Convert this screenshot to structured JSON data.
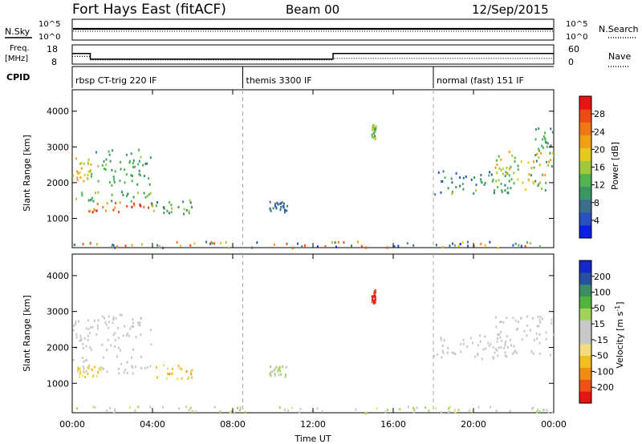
{
  "header": {
    "station": "Fort Hays East (fitACF)",
    "beam": "Beam 00",
    "date": "12/Sep/2015"
  },
  "summary_panels": {
    "sky_label": "N.Sky",
    "search_label": "N.Search",
    "nsky_ticks": [
      "10^5",
      "10^0"
    ],
    "nsearch_ticks": [
      "10^5",
      "10^0"
    ],
    "freq_label_1": "Freq.",
    "freq_label_2": "[MHz]",
    "freq_ticks": [
      "18",
      "8"
    ],
    "nave_label": "Nave",
    "nave_ticks": [
      "60",
      "0"
    ],
    "cpid_label": "CPID",
    "freq_segments": [
      {
        "start": 0.0,
        "end": 0.9,
        "value": 13.5
      },
      {
        "start": 0.9,
        "end": 13.0,
        "value": 10.6
      },
      {
        "start": 13.0,
        "end": 24.0,
        "value": 13.5
      }
    ],
    "nave_segments": [
      {
        "start": 0.0,
        "end": 0.9,
        "value": 24
      },
      {
        "start": 0.9,
        "end": 13.0,
        "value": 13
      },
      {
        "start": 13.0,
        "end": 24.0,
        "value": 18
      }
    ],
    "cpid_segments": [
      {
        "label": "rbsp CT-trig 220 IF",
        "start": 0.0
      },
      {
        "label": "themis 3300 IF",
        "start": 8.5
      },
      {
        "label": "normal (fast) 151 IF",
        "start": 18.0
      }
    ]
  },
  "chart_data": [
    {
      "type": "heatmap",
      "title": "",
      "xlabel": "Time UT",
      "ylabel": "Slant Range [km]",
      "xlim": [
        0,
        24
      ],
      "ylim": [
        180,
        4600
      ],
      "x_ticks": [
        "00:00",
        "04:00",
        "08:00",
        "12:00",
        "16:00",
        "20:00",
        "00:00"
      ],
      "y_ticks": [
        1000,
        2000,
        3000,
        4000
      ],
      "colorbar_label": "Power [dB]",
      "colorbar_ticks": [
        4,
        8,
        12,
        16,
        20,
        24,
        28
      ],
      "colorbar_range": [
        0,
        30
      ],
      "colorbar_colors": [
        "#0a1ee6",
        "#2850c0",
        "#3c6e8c",
        "#3c9664",
        "#50b450",
        "#a0c83c",
        "#e6c81e",
        "#f0a014",
        "#f07814",
        "#ee4a14",
        "#e61414"
      ],
      "mode_boundaries_hours": [
        8.5,
        18.0
      ],
      "scatter_regions": [
        {
          "t": [
            0.0,
            0.9
          ],
          "r": [
            2000,
            2800
          ],
          "v": [
            14,
            22
          ]
        },
        {
          "t": [
            0.9,
            3.9
          ],
          "r": [
            1950,
            2950
          ],
          "v": [
            8,
            14
          ]
        },
        {
          "t": [
            0.0,
            3.9
          ],
          "r": [
            1500,
            1800
          ],
          "v": [
            8,
            16
          ]
        },
        {
          "t": [
            0.8,
            4.0
          ],
          "r": [
            1200,
            1500
          ],
          "v": [
            20,
            29
          ]
        },
        {
          "t": [
            3.9,
            6.0
          ],
          "r": [
            1150,
            1550
          ],
          "v": [
            6,
            16
          ]
        },
        {
          "t": [
            9.8,
            10.7
          ],
          "r": [
            1200,
            1500
          ],
          "v": [
            4,
            10
          ]
        },
        {
          "t": [
            14.9,
            15.1
          ],
          "r": [
            3250,
            3650
          ],
          "v": [
            8,
            18
          ]
        },
        {
          "t": [
            18.0,
            22.0
          ],
          "r": [
            1700,
            2400
          ],
          "v": [
            4,
            14
          ]
        },
        {
          "t": [
            21.0,
            24.0
          ],
          "r": [
            1800,
            2900
          ],
          "v": [
            10,
            22
          ]
        },
        {
          "t": [
            23.0,
            24.0
          ],
          "r": [
            2600,
            3600
          ],
          "v": [
            6,
            14
          ]
        },
        {
          "t": [
            0.0,
            24.0
          ],
          "r": [
            200,
            380
          ],
          "v": [
            2,
            28
          ]
        }
      ]
    },
    {
      "type": "heatmap",
      "title": "",
      "xlabel": "Time UT",
      "ylabel": "Slant Range [km]",
      "xlim": [
        0,
        24
      ],
      "ylim": [
        180,
        4600
      ],
      "x_ticks": [
        "00:00",
        "04:00",
        "08:00",
        "12:00",
        "16:00",
        "20:00",
        "00:00"
      ],
      "y_ticks": [
        1000,
        2000,
        3000,
        4000
      ],
      "colorbar_label": "Velocity [m s^-1]",
      "colorbar_ticks": [
        "200",
        "100",
        "50",
        "15",
        "-15",
        "-50",
        "-100",
        "-200"
      ],
      "colorbar_range": [
        -250,
        250
      ],
      "colorbar_colors": [
        "#e61414",
        "#f05014",
        "#f08c14",
        "#f0be1e",
        "#f0dc78",
        "#c8c8c8",
        "#c8c8c8",
        "#a0d25a",
        "#50b43c",
        "#3c8c64",
        "#2850a0",
        "#1428c8"
      ],
      "mode_boundaries_hours": [
        8.5,
        18.0
      ],
      "scatter_regions": [
        {
          "t": [
            0.0,
            0.9
          ],
          "r": [
            2000,
            2800
          ],
          "v": [
            -20,
            20
          ]
        },
        {
          "t": [
            0.9,
            3.9
          ],
          "r": [
            1950,
            2950
          ],
          "v": [
            -15,
            15
          ]
        },
        {
          "t": [
            0.0,
            3.9
          ],
          "r": [
            1300,
            1800
          ],
          "v": [
            -12,
            12
          ]
        },
        {
          "t": [
            0.2,
            1.4
          ],
          "r": [
            1200,
            1500
          ],
          "v": [
            -110,
            -40
          ]
        },
        {
          "t": [
            3.9,
            6.0
          ],
          "r": [
            1150,
            1550
          ],
          "v": [
            -130,
            -40
          ]
        },
        {
          "t": [
            9.8,
            10.7
          ],
          "r": [
            1200,
            1500
          ],
          "v": [
            20,
            80
          ]
        },
        {
          "t": [
            14.9,
            15.1
          ],
          "r": [
            3250,
            3650
          ],
          "v": [
            -240,
            -180
          ]
        },
        {
          "t": [
            18.0,
            22.0
          ],
          "r": [
            1700,
            2400
          ],
          "v": [
            -20,
            20
          ]
        },
        {
          "t": [
            21.0,
            24.0
          ],
          "r": [
            1800,
            2900
          ],
          "v": [
            -30,
            30
          ]
        },
        {
          "t": [
            0.0,
            24.0
          ],
          "r": [
            200,
            380
          ],
          "v": [
            -60,
            80
          ]
        }
      ]
    }
  ]
}
